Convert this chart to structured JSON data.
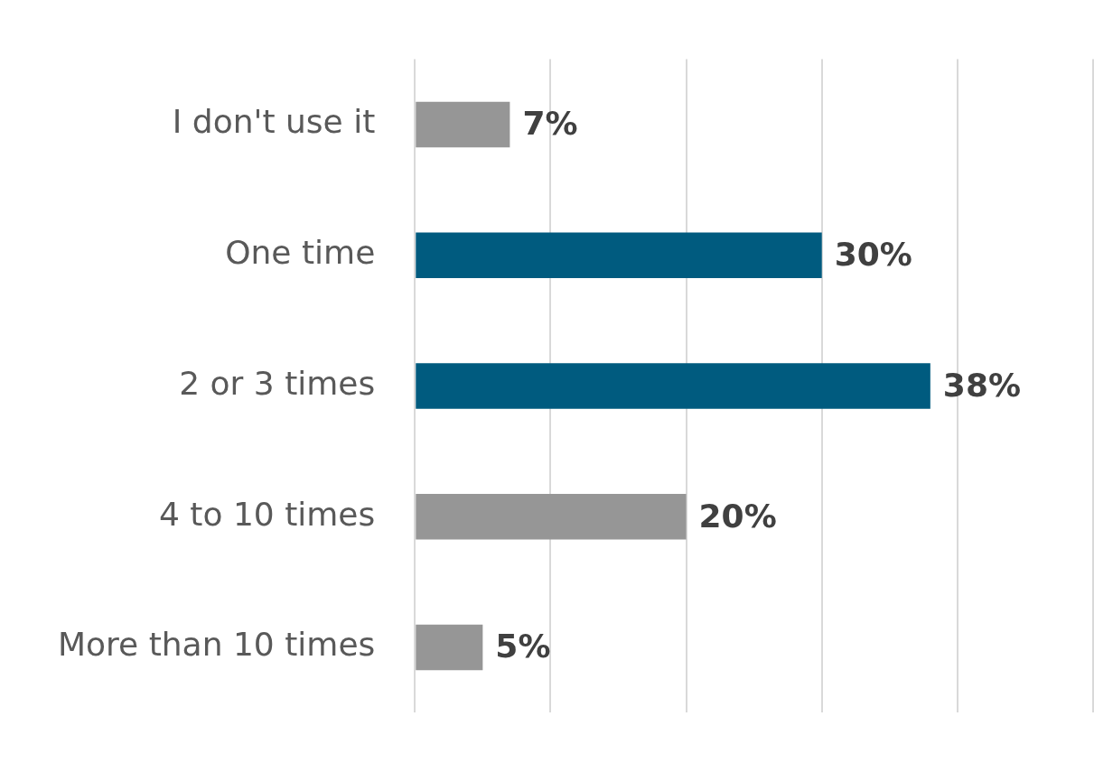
{
  "chart_data": {
    "type": "bar",
    "orientation": "horizontal",
    "categories": [
      "I don't use it",
      "One time",
      "2 or 3 times",
      "4 to 10 times",
      "More than 10 times"
    ],
    "values": [
      7,
      30,
      38,
      20,
      5
    ],
    "colors": [
      "#969696",
      "#005b7f",
      "#005b7f",
      "#969696",
      "#969696"
    ],
    "value_labels": [
      "7%",
      "30%",
      "38%",
      "20%",
      "5%"
    ],
    "xlim": [
      0,
      50
    ],
    "xticks": [
      {
        "value": 0,
        "label": null
      },
      {
        "value": 10,
        "label": null
      },
      {
        "value": 20,
        "label": null
      },
      {
        "value": 30,
        "label": null
      },
      {
        "value": 40,
        "label": null
      },
      {
        "value": 50,
        "label": null
      }
    ],
    "grid": "x",
    "tick_labels": "y"
  }
}
